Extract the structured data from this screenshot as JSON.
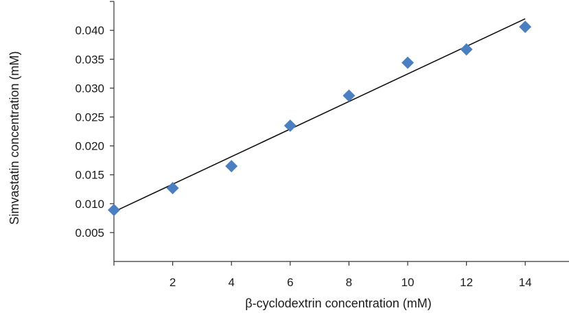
{
  "chart_data": {
    "type": "scatter",
    "xlabel": "β-cyclodextrin concentration (mM)",
    "ylabel": "Simvastatin concentration (mM)",
    "xlim": [
      0,
      16
    ],
    "ylim": [
      0,
      0.045
    ],
    "x_ticks": [
      2,
      4,
      6,
      8,
      10,
      12,
      14
    ],
    "x_tick_labels": [
      "2",
      "4",
      "6",
      "8",
      "10",
      "12",
      "14"
    ],
    "y_ticks": [
      0.005,
      0.01,
      0.015,
      0.02,
      0.025,
      0.03,
      0.035,
      0.04
    ],
    "y_tick_labels": [
      "0.005",
      "0.010",
      "0.015",
      "0.020",
      "0.025",
      "0.030",
      "0.035",
      "0.040"
    ],
    "grid": false,
    "legend": "none",
    "series": [
      {
        "marker": "diamond",
        "color": "#4a7fc1",
        "x": [
          0,
          2,
          4,
          6,
          8,
          10,
          12,
          14
        ],
        "y": [
          0.0089,
          0.0127,
          0.0165,
          0.0235,
          0.0287,
          0.0344,
          0.0367,
          0.0406
        ]
      }
    ],
    "trendline": {
      "type": "linear",
      "color": "#111111",
      "x": [
        0,
        14
      ],
      "y": [
        0.0086,
        0.042
      ]
    }
  }
}
